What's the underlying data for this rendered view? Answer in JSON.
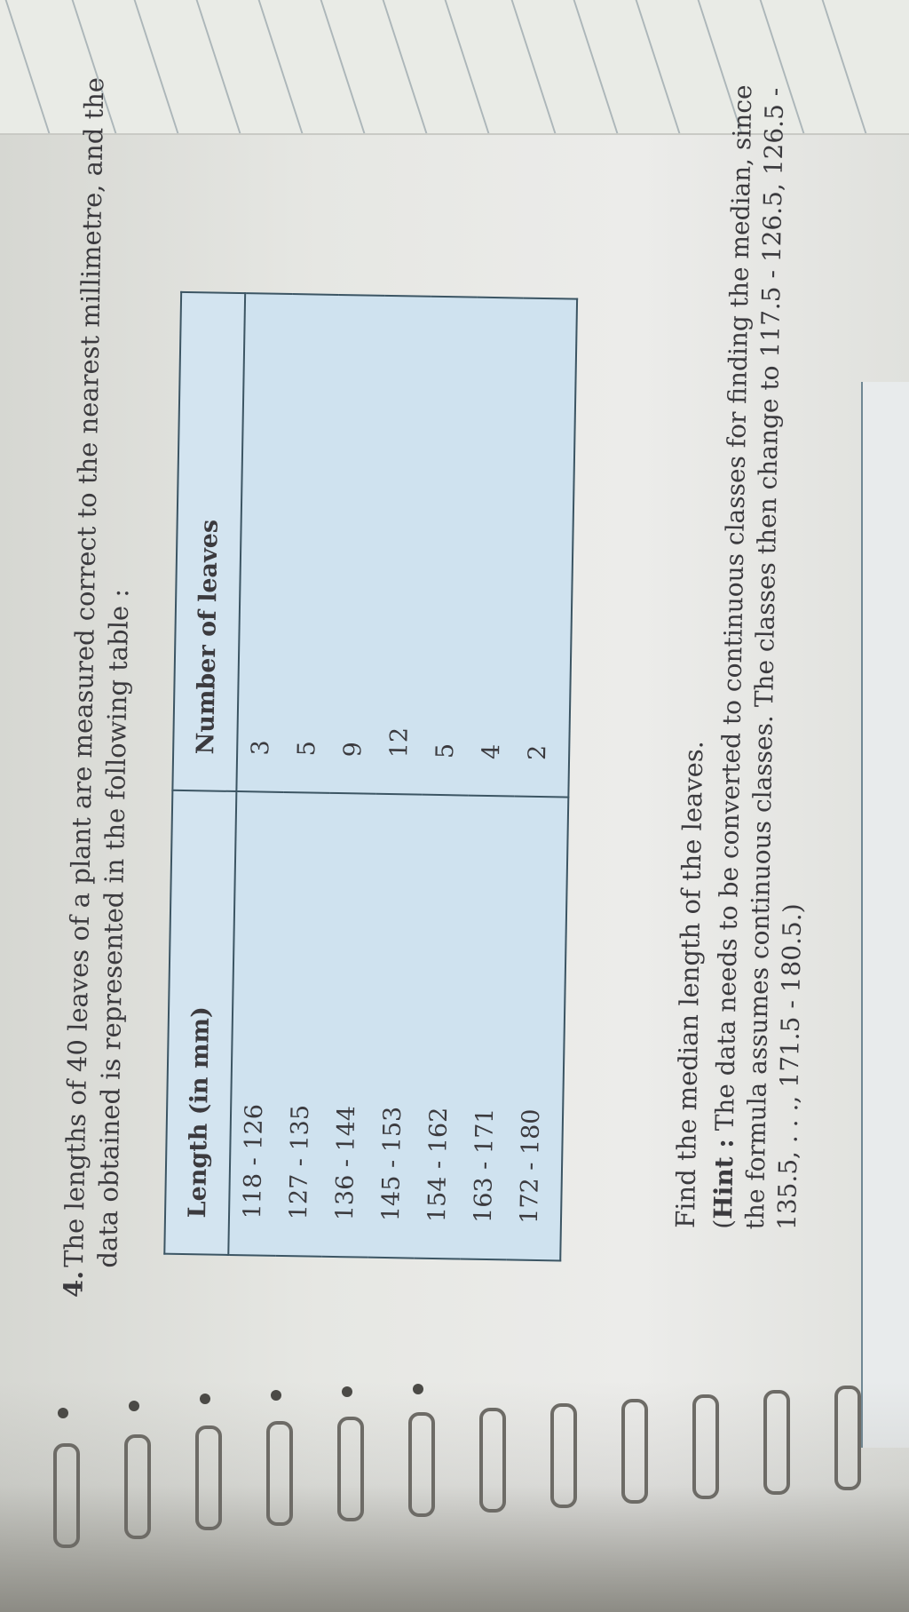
{
  "question": {
    "number": "4.",
    "text": "The lengths of 40 leaves of a plant are measured correct to the nearest millimetre, and the data obtained is represented in the following table :"
  },
  "table": {
    "headers": [
      "Length (in mm)",
      "Number of leaves"
    ],
    "rows": [
      [
        "118 - 126",
        "3"
      ],
      [
        "127 - 135",
        "5"
      ],
      [
        "136 - 144",
        "9"
      ],
      [
        "145 - 153",
        "12"
      ],
      [
        "154 - 162",
        "5"
      ],
      [
        "163 - 171",
        "4"
      ],
      [
        "172 - 180",
        "2"
      ]
    ]
  },
  "find_text": "Find the median length of the leaves.",
  "hint": {
    "open": "(",
    "label": "Hint :",
    "text": " The data needs to be converted to continuous classes for finding the median, since the formula assumes continuous classes. The classes then change to 117.5 - 126.5, 126.5 - 135.5, . . ., 171.5 - 180.5.)"
  },
  "colors": {
    "table_fill": "#cfe2ef",
    "table_border": "#3c5563",
    "text": "#3b3a3e"
  }
}
